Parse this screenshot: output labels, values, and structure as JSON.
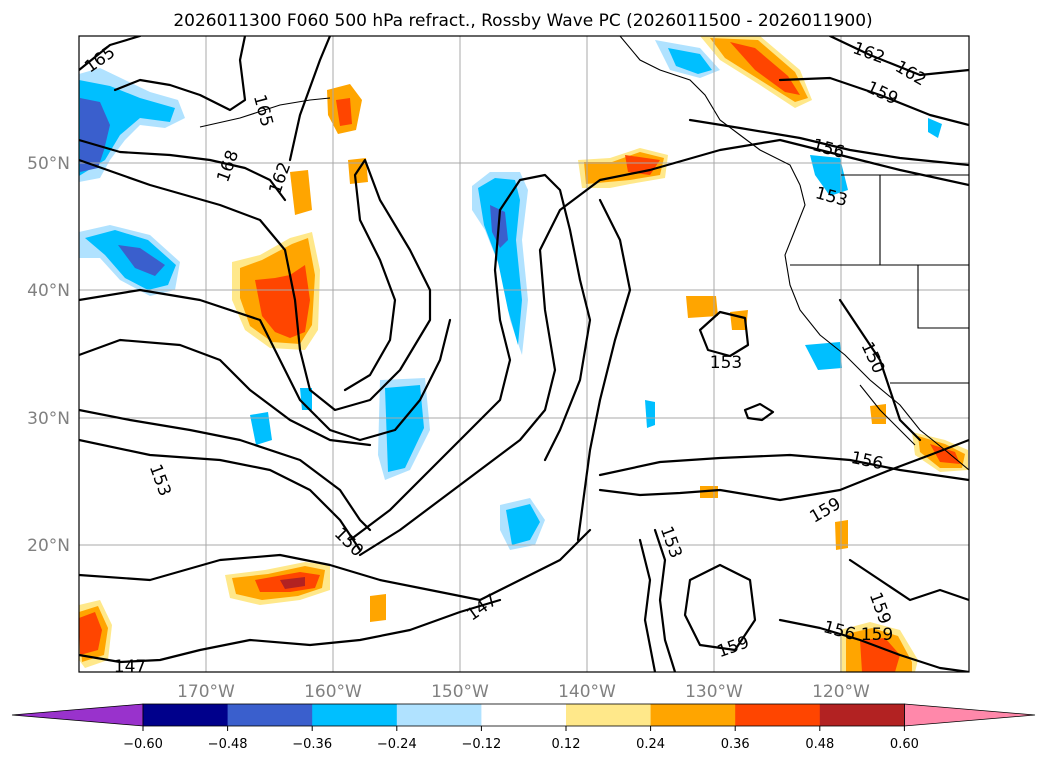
{
  "title": "2026011300 F060 500 hPa refract., Rossby Wave PC (2026011500 - 2026011900)",
  "lat_labels": [
    "50°N",
    "40°N",
    "30°N",
    "20°N"
  ],
  "lon_labels": [
    "170°W",
    "160°W",
    "150°W",
    "140°W",
    "130°W",
    "120°W"
  ],
  "colorbar": {
    "ticks": [
      "−0.60",
      "−0.48",
      "−0.36",
      "−0.24",
      "−0.12",
      "0.12",
      "0.24",
      "0.36",
      "0.48",
      "0.60"
    ],
    "colors": [
      "#9932cc",
      "#00008b",
      "#3a5fcd",
      "#00bfff",
      "#b0e2ff",
      "#ffffff",
      "#ffe88a",
      "#ffa500",
      "#ff4500",
      "#b22222",
      "#ff88aa"
    ]
  },
  "contour_labels": [
    "165",
    "165",
    "168",
    "162",
    "162",
    "162",
    "159",
    "156",
    "153",
    "153",
    "150",
    "153",
    "156",
    "159",
    "159",
    "153",
    "150",
    "147",
    "147",
    "156",
    "159",
    "159"
  ],
  "map": {
    "lon_range": [
      -180,
      -110
    ],
    "lat_range": [
      10,
      60
    ],
    "levels_m": [
      -0.6,
      -0.48,
      -0.36,
      -0.24,
      -0.12,
      0.12,
      0.24,
      0.36,
      0.48,
      0.6
    ]
  }
}
